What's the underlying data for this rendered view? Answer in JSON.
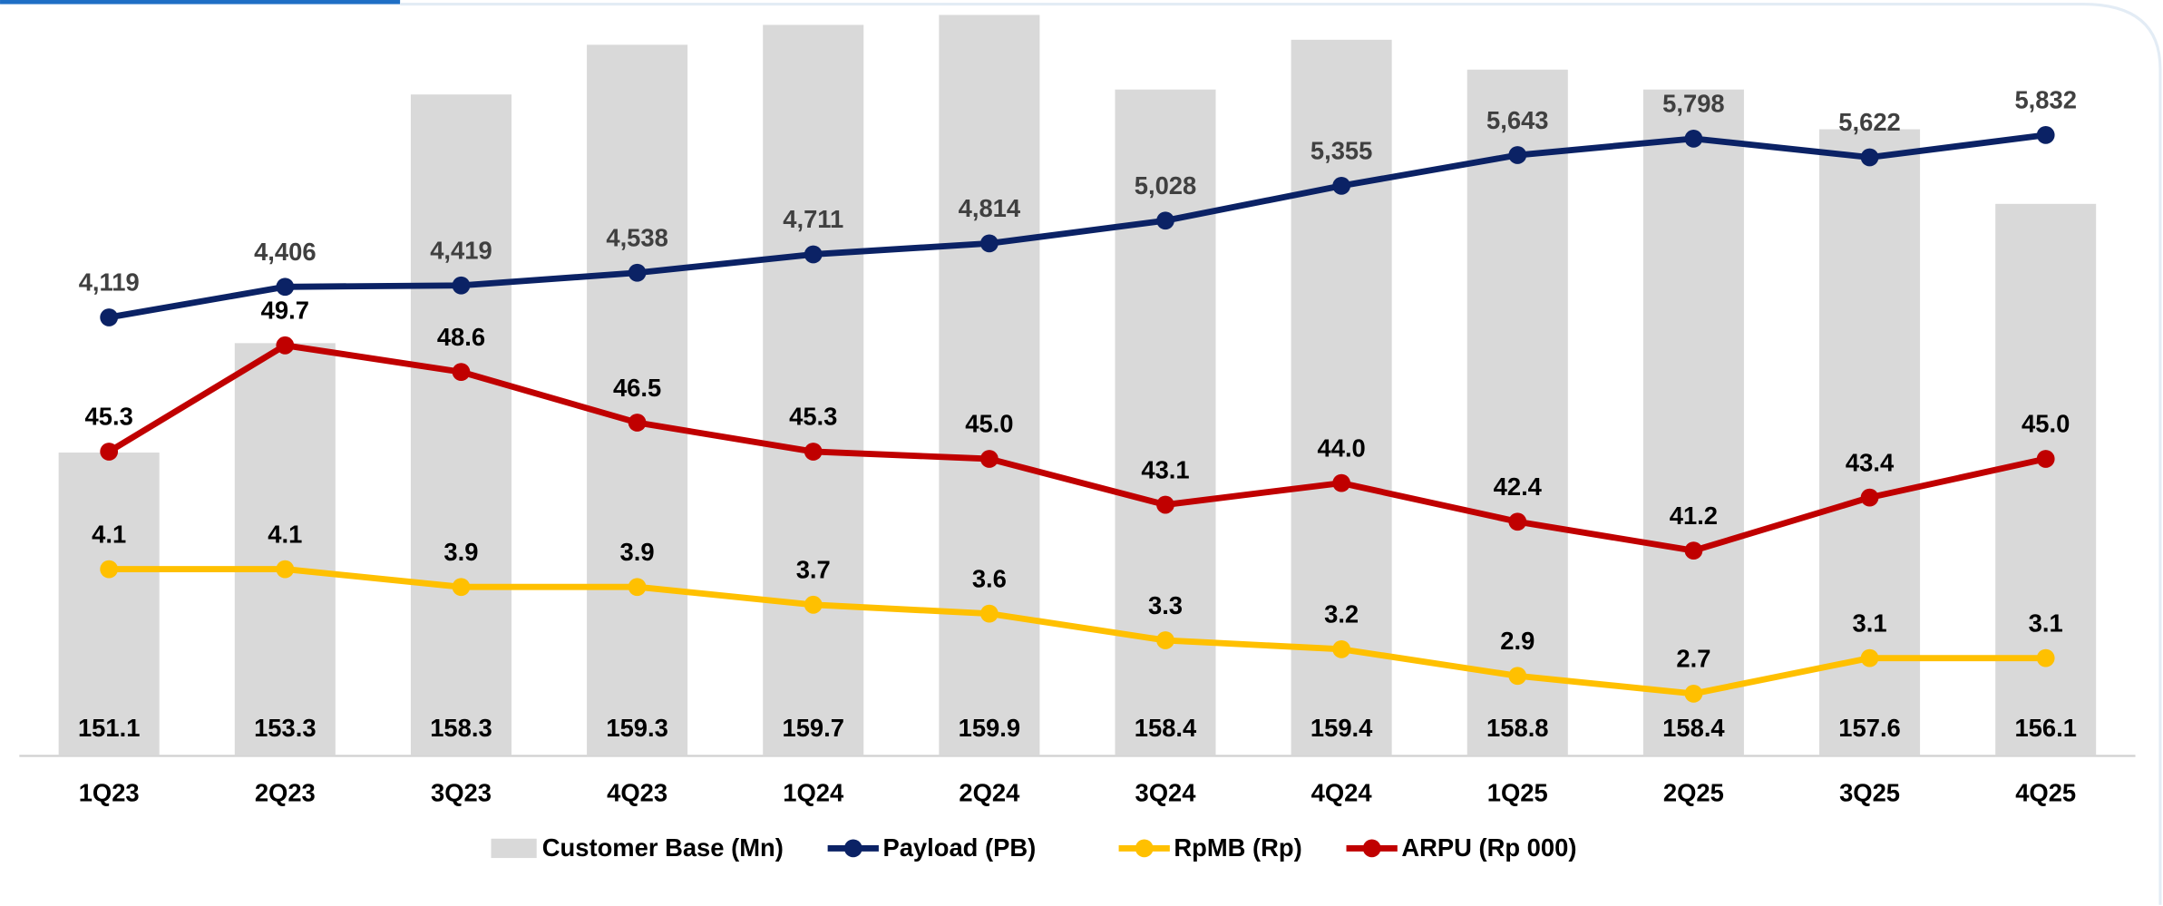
{
  "chart_data": {
    "type": "combo",
    "categories": [
      "1Q23",
      "2Q23",
      "3Q23",
      "4Q23",
      "1Q24",
      "2Q24",
      "3Q24",
      "4Q24",
      "1Q25",
      "2Q25",
      "3Q25",
      "4Q25"
    ],
    "series": [
      {
        "name": "Customer Base (Mn)",
        "type": "bar",
        "color": "#d9d9d9",
        "label_color": "#000000",
        "ylim": [
          145,
          160.2
        ],
        "values": [
          151.1,
          153.3,
          158.3,
          159.3,
          159.7,
          159.9,
          158.4,
          159.4,
          158.8,
          158.4,
          157.6,
          156.1
        ]
      },
      {
        "name": "Payload (PB)",
        "type": "line",
        "color": "#0b2265",
        "label_color": "#404040",
        "ylim": [
          0,
          7100
        ],
        "values": [
          4119,
          4406,
          4419,
          4538,
          4711,
          4814,
          5028,
          5355,
          5643,
          5798,
          5622,
          5832
        ],
        "value_labels": [
          "4,119",
          "4,406",
          "4,419",
          "4,538",
          "4,711",
          "4,814",
          "5,028",
          "5,355",
          "5,643",
          "5,798",
          "5,622",
          "5,832"
        ]
      },
      {
        "name": "RpMB (Rp)",
        "type": "line",
        "color": "#ffc000",
        "label_color": "#000000",
        "ylim": [
          2,
          10.5
        ],
        "values": [
          4.1,
          4.1,
          3.9,
          3.9,
          3.7,
          3.6,
          3.3,
          3.2,
          2.9,
          2.7,
          3.1,
          3.1
        ]
      },
      {
        "name": "ARPU (Rp 000)",
        "type": "line",
        "color": "#c00000",
        "label_color": "#000000",
        "ylim": [
          32.7,
          64
        ],
        "values": [
          45.3,
          49.7,
          48.6,
          46.5,
          45.3,
          45.0,
          43.1,
          44.0,
          42.4,
          41.2,
          43.4,
          45.0
        ],
        "value_labels": [
          "45.3",
          "49.7",
          "48.6",
          "46.5",
          "45.3",
          "45.0",
          "43.1",
          "44.0",
          "42.4",
          "41.2",
          "43.4",
          "45.0"
        ]
      }
    ]
  }
}
